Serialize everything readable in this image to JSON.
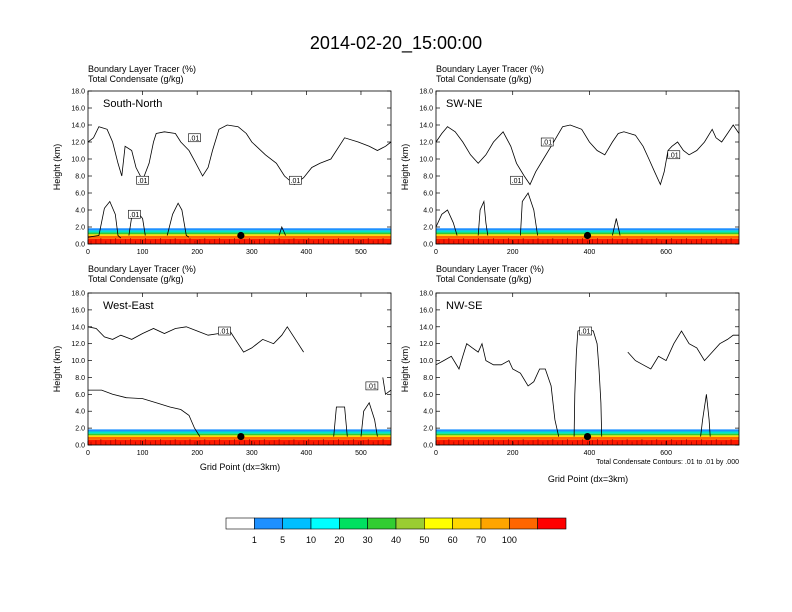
{
  "title": "2014-02-20_15:00:00",
  "header_line1": "Boundary Layer Tracer   (%)",
  "header_line2": "Total Condensate   (g/kg)",
  "ylabel": "Height (km)",
  "xlabel": "Grid Point (dx=3km)",
  "contour_note": "Total Condensate Contours: .01 to .01 by .000",
  "marker_label": ".01",
  "colorbar": {
    "labels": [
      "1",
      "5",
      "10",
      "20",
      "30",
      "40",
      "50",
      "60",
      "70",
      "100"
    ],
    "colors": [
      "#ffffff",
      "#1e90ff",
      "#00bfff",
      "#00ffff",
      "#00e060",
      "#32cd32",
      "#9acd32",
      "#ffff00",
      "#ffd700",
      "#ffa500",
      "#ff6600",
      "#ff0000"
    ]
  },
  "chart_data": [
    {
      "type": "heatmap",
      "panel_label": "South-North",
      "xlim": [
        0,
        555
      ],
      "ylim": [
        0,
        18
      ],
      "xticks": [
        0,
        100,
        200,
        300,
        400,
        500
      ],
      "yticks": [
        "0.0",
        "2.0",
        "4.0",
        "6.0",
        "8.0",
        "10.0",
        "12.0",
        "14.0",
        "16.0",
        "18.0"
      ],
      "marker": {
        "x": 280,
        "y": 1.0
      },
      "contour": [
        [
          [
            0,
            12.0
          ],
          [
            10,
            12.5
          ],
          [
            20,
            13.8
          ],
          [
            35,
            13.5
          ],
          [
            45,
            12.0
          ],
          [
            55,
            9.5
          ],
          [
            62,
            8.0
          ],
          [
            68,
            11.5
          ],
          [
            80,
            11.0
          ],
          [
            88,
            9.0
          ],
          [
            100,
            7.5
          ],
          [
            112,
            9.5
          ],
          [
            120,
            12.0
          ],
          [
            125,
            13.0
          ],
          [
            140,
            13.2
          ],
          [
            160,
            13.0
          ],
          [
            170,
            12.0
          ],
          [
            185,
            11.0
          ],
          [
            195,
            9.8
          ],
          [
            210,
            8.0
          ],
          [
            220,
            9.0
          ],
          [
            228,
            11.0
          ],
          [
            240,
            13.5
          ],
          [
            255,
            14.0
          ],
          [
            275,
            13.8
          ],
          [
            290,
            13.0
          ],
          [
            300,
            12.0
          ],
          [
            325,
            10.5
          ],
          [
            345,
            9.5
          ],
          [
            360,
            8.0
          ],
          [
            378,
            7.0
          ],
          [
            395,
            7.8
          ],
          [
            410,
            9.0
          ],
          [
            425,
            9.5
          ],
          [
            445,
            10.0
          ],
          [
            470,
            12.5
          ],
          [
            495,
            12.0
          ],
          [
            515,
            11.5
          ],
          [
            530,
            11.0
          ],
          [
            545,
            11.5
          ],
          [
            555,
            12.0
          ]
        ],
        [
          [
            0,
            0.8
          ],
          [
            20,
            1.0
          ],
          [
            30,
            4.2
          ],
          [
            40,
            5.0
          ],
          [
            50,
            3.5
          ],
          [
            55,
            1.0
          ],
          [
            60,
            0.7
          ]
        ],
        [
          [
            75,
            1.0
          ],
          [
            80,
            3.2
          ],
          [
            90,
            3.8
          ],
          [
            100,
            3.0
          ],
          [
            105,
            1.0
          ]
        ],
        [
          [
            145,
            1.0
          ],
          [
            155,
            3.5
          ],
          [
            165,
            4.8
          ],
          [
            172,
            4.0
          ],
          [
            180,
            1.0
          ],
          [
            185,
            0.8
          ]
        ],
        [
          [
            350,
            1.0
          ],
          [
            355,
            2.0
          ],
          [
            362,
            1.0
          ]
        ]
      ],
      "labels": [
        {
          "x": 195,
          "y": 12.5
        },
        {
          "x": 100,
          "y": 7.5
        },
        {
          "x": 380,
          "y": 7.5
        },
        {
          "x": 85,
          "y": 3.5
        }
      ]
    },
    {
      "type": "heatmap",
      "panel_label": "SW-NE",
      "xlim": [
        0,
        790
      ],
      "ylim": [
        0,
        18
      ],
      "xticks": [
        0,
        200,
        400,
        600
      ],
      "yticks": [
        "0.0",
        "2.0",
        "4.0",
        "6.0",
        "8.0",
        "10.0",
        "12.0",
        "14.0",
        "16.0",
        "18.0"
      ],
      "marker": {
        "x": 395,
        "y": 1.0
      },
      "contour": [
        [
          [
            0,
            12.0
          ],
          [
            15,
            13.0
          ],
          [
            30,
            13.8
          ],
          [
            50,
            13.2
          ],
          [
            70,
            12.0
          ],
          [
            90,
            10.5
          ],
          [
            110,
            9.5
          ],
          [
            130,
            10.5
          ],
          [
            150,
            12.0
          ],
          [
            175,
            13.2
          ],
          [
            195,
            11.5
          ],
          [
            210,
            9.5
          ],
          [
            230,
            8.0
          ],
          [
            245,
            7.0
          ],
          [
            260,
            8.5
          ],
          [
            280,
            10.0
          ],
          [
            300,
            11.5
          ],
          [
            330,
            13.8
          ],
          [
            350,
            14.0
          ],
          [
            380,
            13.5
          ],
          [
            400,
            12.0
          ],
          [
            420,
            11.0
          ],
          [
            440,
            10.5
          ],
          [
            460,
            12.0
          ],
          [
            475,
            13.0
          ],
          [
            490,
            13.2
          ],
          [
            520,
            12.8
          ],
          [
            540,
            11.5
          ],
          [
            555,
            10.0
          ],
          [
            570,
            8.5
          ],
          [
            585,
            7.0
          ],
          [
            595,
            8.5
          ],
          [
            605,
            11.0
          ],
          [
            615,
            11.5
          ],
          [
            630,
            12.0
          ],
          [
            645,
            11.0
          ],
          [
            660,
            10.5
          ],
          [
            680,
            11.0
          ],
          [
            700,
            12.0
          ],
          [
            720,
            13.5
          ],
          [
            730,
            12.5
          ],
          [
            745,
            12.0
          ],
          [
            760,
            13.0
          ],
          [
            775,
            14.0
          ],
          [
            790,
            13.0
          ]
        ],
        [
          [
            0,
            2.0
          ],
          [
            15,
            3.5
          ],
          [
            30,
            4.0
          ],
          [
            45,
            2.5
          ],
          [
            55,
            1.0
          ]
        ],
        [
          [
            110,
            1.0
          ],
          [
            115,
            4.0
          ],
          [
            125,
            5.0
          ],
          [
            130,
            2.5
          ],
          [
            135,
            1.0
          ]
        ],
        [
          [
            220,
            1.0
          ],
          [
            225,
            5.0
          ],
          [
            240,
            6.0
          ],
          [
            255,
            4.0
          ],
          [
            265,
            1.0
          ]
        ],
        [
          [
            460,
            1.0
          ],
          [
            470,
            3.0
          ],
          [
            480,
            1.0
          ]
        ]
      ],
      "labels": [
        {
          "x": 290,
          "y": 12.0
        },
        {
          "x": 210,
          "y": 7.5
        },
        {
          "x": 620,
          "y": 10.5
        }
      ]
    },
    {
      "type": "heatmap",
      "panel_label": "West-East",
      "xlim": [
        0,
        555
      ],
      "ylim": [
        0,
        18
      ],
      "xticks": [
        0,
        100,
        200,
        300,
        400,
        500
      ],
      "yticks": [
        "0.0",
        "2.0",
        "4.0",
        "6.0",
        "8.0",
        "10.0",
        "12.0",
        "14.0",
        "16.0",
        "18.0"
      ],
      "marker": {
        "x": 280,
        "y": 1.0
      },
      "contour": [
        [
          [
            0,
            14.0
          ],
          [
            15,
            13.8
          ],
          [
            30,
            12.8
          ],
          [
            45,
            12.5
          ],
          [
            60,
            13.0
          ],
          [
            80,
            12.5
          ],
          [
            100,
            13.2
          ],
          [
            120,
            13.8
          ],
          [
            140,
            13.2
          ],
          [
            160,
            13.8
          ],
          [
            180,
            14.0
          ],
          [
            200,
            13.5
          ],
          [
            220,
            13.0
          ],
          [
            240,
            13.2
          ],
          [
            260,
            13.5
          ],
          [
            275,
            12.0
          ],
          [
            285,
            11.0
          ],
          [
            300,
            11.5
          ],
          [
            320,
            12.5
          ],
          [
            340,
            12.0
          ],
          [
            355,
            13.0
          ],
          [
            365,
            14.0
          ],
          [
            375,
            13.0
          ],
          [
            385,
            12.0
          ],
          [
            395,
            11.0
          ]
        ],
        [
          [
            0,
            6.5
          ],
          [
            25,
            6.5
          ],
          [
            45,
            6.0
          ],
          [
            70,
            5.6
          ],
          [
            100,
            5.5
          ],
          [
            125,
            5.0
          ],
          [
            150,
            4.5
          ],
          [
            170,
            4.2
          ],
          [
            185,
            3.5
          ],
          [
            195,
            2.0
          ],
          [
            205,
            1.0
          ]
        ],
        [
          [
            450,
            1.0
          ],
          [
            455,
            4.5
          ],
          [
            470,
            4.5
          ],
          [
            475,
            1.0
          ]
        ],
        [
          [
            500,
            1.0
          ],
          [
            505,
            4.0
          ],
          [
            515,
            5.0
          ],
          [
            525,
            3.0
          ],
          [
            530,
            1.0
          ]
        ],
        [
          [
            540,
            8.0
          ],
          [
            545,
            6.0
          ],
          [
            555,
            6.5
          ]
        ]
      ],
      "labels": [
        {
          "x": 250,
          "y": 13.5
        },
        {
          "x": 520,
          "y": 7.0
        }
      ]
    },
    {
      "type": "heatmap",
      "panel_label": "NW-SE",
      "xlim": [
        0,
        790
      ],
      "ylim": [
        0,
        18
      ],
      "xticks": [
        0,
        200,
        400,
        600
      ],
      "yticks": [
        "0.0",
        "2.0",
        "4.0",
        "6.0",
        "8.0",
        "10.0",
        "12.0",
        "14.0",
        "16.0",
        "18.0"
      ],
      "marker": {
        "x": 395,
        "y": 1.0
      },
      "contour": [
        [
          [
            0,
            9.5
          ],
          [
            20,
            10.0
          ],
          [
            40,
            10.5
          ],
          [
            60,
            9.0
          ],
          [
            70,
            10.5
          ],
          [
            80,
            12.0
          ],
          [
            95,
            11.5
          ],
          [
            110,
            11.0
          ],
          [
            120,
            12.0
          ],
          [
            130,
            10.0
          ],
          [
            150,
            9.5
          ],
          [
            170,
            9.5
          ],
          [
            190,
            10.0
          ],
          [
            200,
            9.0
          ],
          [
            220,
            8.5
          ],
          [
            240,
            7.0
          ],
          [
            255,
            7.5
          ],
          [
            270,
            9.0
          ],
          [
            285,
            9.0
          ],
          [
            300,
            7.0
          ],
          [
            310,
            3.0
          ],
          [
            320,
            1.0
          ]
        ],
        [
          [
            360,
            1.0
          ],
          [
            362,
            6.0
          ],
          [
            366,
            11.0
          ],
          [
            370,
            13.5
          ],
          [
            390,
            13.8
          ],
          [
            410,
            13.5
          ],
          [
            420,
            12.0
          ],
          [
            425,
            9.0
          ],
          [
            430,
            5.0
          ],
          [
            432,
            1.0
          ]
        ],
        [
          [
            500,
            11.0
          ],
          [
            520,
            10.0
          ],
          [
            540,
            9.5
          ],
          [
            560,
            9.0
          ],
          [
            580,
            10.5
          ],
          [
            600,
            10.0
          ],
          [
            620,
            12.0
          ],
          [
            640,
            13.5
          ],
          [
            660,
            12.0
          ],
          [
            680,
            11.5
          ],
          [
            700,
            10.0
          ],
          [
            720,
            11.0
          ],
          [
            740,
            12.0
          ],
          [
            760,
            12.5
          ],
          [
            775,
            13.0
          ],
          [
            790,
            13.0
          ]
        ],
        [
          [
            690,
            1.0
          ],
          [
            695,
            3.0
          ],
          [
            705,
            6.0
          ],
          [
            712,
            3.0
          ],
          [
            715,
            1.0
          ]
        ]
      ],
      "labels": [
        {
          "x": 390,
          "y": 13.5
        }
      ]
    }
  ]
}
